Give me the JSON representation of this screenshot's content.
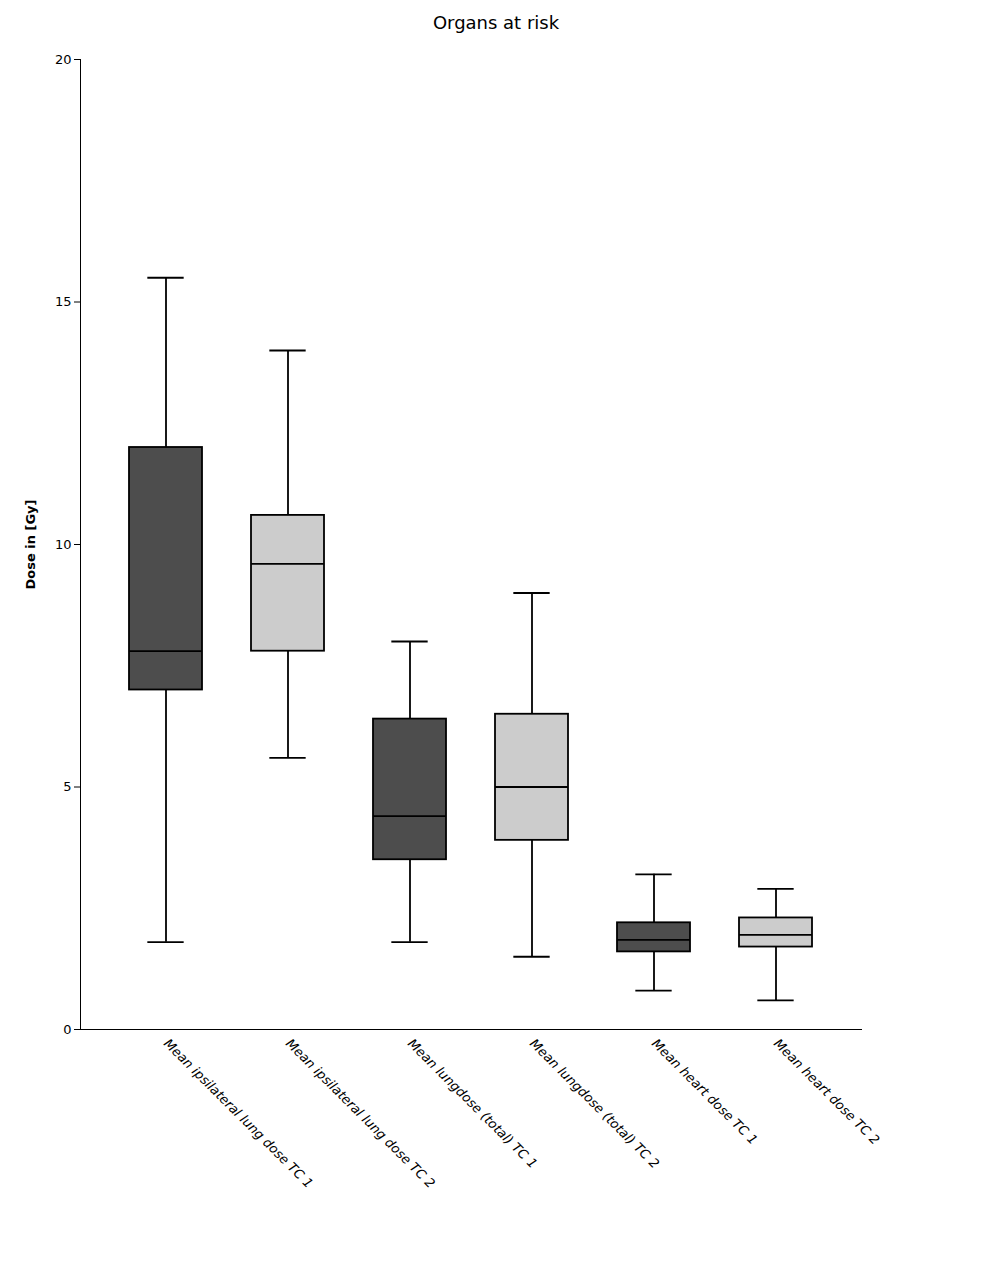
{
  "chart_data": {
    "type": "box",
    "title": "Organs at risk",
    "ylabel": "Dose in [Gy]",
    "categories": [
      "Mean ipsilateral lung dose TC 1",
      "Mean ipsilateral lung dose TC 2",
      "Mean lungdose (total) TC 1",
      "Mean lungdose (total) TC 2",
      "Mean heart dose TC 1",
      "Mean heart dose TC 2"
    ],
    "boxes": [
      {
        "whislo": 1.8,
        "q1": 7.0,
        "med": 7.8,
        "q3": 12.0,
        "whishi": 15.5
      },
      {
        "whislo": 5.6,
        "q1": 7.8,
        "med": 9.6,
        "q3": 10.6,
        "whishi": 14.0
      },
      {
        "whislo": 1.8,
        "q1": 3.5,
        "med": 4.4,
        "q3": 6.4,
        "whishi": 8.0
      },
      {
        "whislo": 1.5,
        "q1": 3.9,
        "med": 5.0,
        "q3": 6.5,
        "whishi": 9.0
      },
      {
        "whislo": 0.8,
        "q1": 1.6,
        "med": 1.85,
        "q3": 2.2,
        "whishi": 3.2
      },
      {
        "whislo": 0.6,
        "q1": 1.7,
        "med": 1.95,
        "q3": 2.3,
        "whishi": 2.9
      }
    ],
    "colors": [
      "#4d4d4d",
      "#cccccc",
      "#4d4d4d",
      "#cccccc",
      "#4d4d4d",
      "#cccccc"
    ],
    "ylim": [
      0,
      20
    ],
    "yticks": [
      0,
      5,
      10,
      15,
      20
    ],
    "grid": false
  }
}
